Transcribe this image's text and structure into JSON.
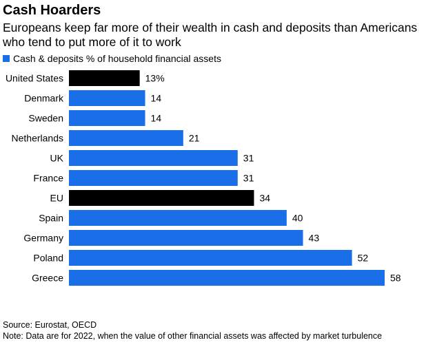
{
  "title": "Cash Hoarders",
  "subtitle": "Europeans keep far more of their wealth in cash and deposits than Americans who tend to put more of it to work",
  "legend": {
    "label": "Cash & deposits % of household financial assets"
  },
  "colors": {
    "series": "#1a6fe8",
    "highlight": "#000000"
  },
  "footer": {
    "source": "Source: Eurostat, OECD",
    "note": "Note: Data are for 2022, when the value of other financial assets was affected by market turbulence"
  },
  "chart_data": {
    "type": "bar",
    "orientation": "horizontal",
    "categories": [
      "United States",
      "Denmark",
      "Sweden",
      "Netherlands",
      "UK",
      "France",
      "EU",
      "Spain",
      "Germany",
      "Poland",
      "Greece"
    ],
    "values": [
      13,
      14,
      14,
      21,
      31,
      31,
      34,
      40,
      43,
      52,
      58
    ],
    "value_labels": [
      "13%",
      "14",
      "14",
      "21",
      "31",
      "31",
      "34",
      "40",
      "43",
      "52",
      "58"
    ],
    "highlighted": [
      "United States",
      "EU"
    ],
    "series": [
      {
        "name": "Cash & deposits % of household financial assets",
        "values": [
          13,
          14,
          14,
          21,
          31,
          31,
          34,
          40,
          43,
          52,
          58
        ]
      }
    ],
    "xlim": [
      0,
      58
    ],
    "grid": false,
    "legend_position": "top-left"
  }
}
